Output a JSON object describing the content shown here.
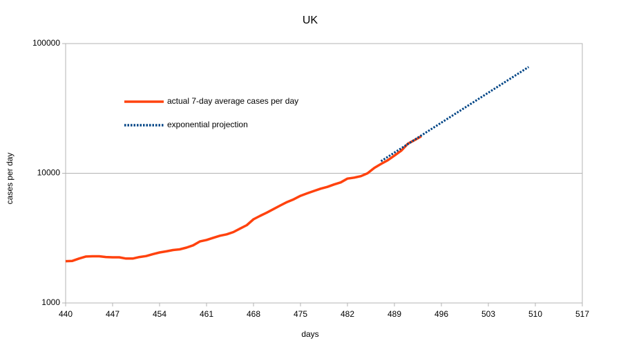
{
  "chart_data": {
    "type": "line",
    "title": "UK",
    "x_label": "days",
    "y_label": "cases per day",
    "log_scale": true,
    "grid": true,
    "legend": "upper left",
    "xlim": [
      440,
      517
    ],
    "xticks": [
      440,
      447,
      454,
      461,
      468,
      475,
      482,
      489,
      496,
      503,
      510,
      517
    ],
    "ylim": [
      1000,
      100000
    ],
    "yticks": [
      1000,
      10000,
      100000
    ],
    "series": [
      {
        "name": "actual 7-day average cases per day",
        "color": "#ff420e",
        "style": "solid",
        "x": [
          440,
          441,
          442,
          443,
          444,
          445,
          446,
          447,
          448,
          449,
          450,
          451,
          452,
          453,
          454,
          455,
          456,
          457,
          458,
          459,
          460,
          461,
          462,
          463,
          464,
          465,
          466,
          467,
          468,
          469,
          470,
          471,
          472,
          473,
          474,
          475,
          476,
          477,
          478,
          479,
          480,
          481,
          482,
          483,
          484,
          485,
          486,
          487,
          488,
          489,
          490,
          491,
          492,
          493
        ],
        "values": [
          2100,
          2110,
          2200,
          2280,
          2290,
          2290,
          2260,
          2250,
          2250,
          2200,
          2200,
          2260,
          2300,
          2380,
          2450,
          2500,
          2560,
          2590,
          2670,
          2780,
          2980,
          3060,
          3180,
          3300,
          3380,
          3520,
          3750,
          3980,
          4420,
          4700,
          4980,
          5300,
          5650,
          6000,
          6300,
          6700,
          7000,
          7300,
          7600,
          7850,
          8200,
          8500,
          9100,
          9250,
          9500,
          10000,
          11000,
          11800,
          12600,
          13700,
          14900,
          16900,
          18000,
          19300
        ]
      },
      {
        "name": "exponential projection",
        "color": "#004586",
        "style": "dotted",
        "x": [
          487,
          509
        ],
        "values": [
          12400,
          66000
        ]
      }
    ]
  }
}
